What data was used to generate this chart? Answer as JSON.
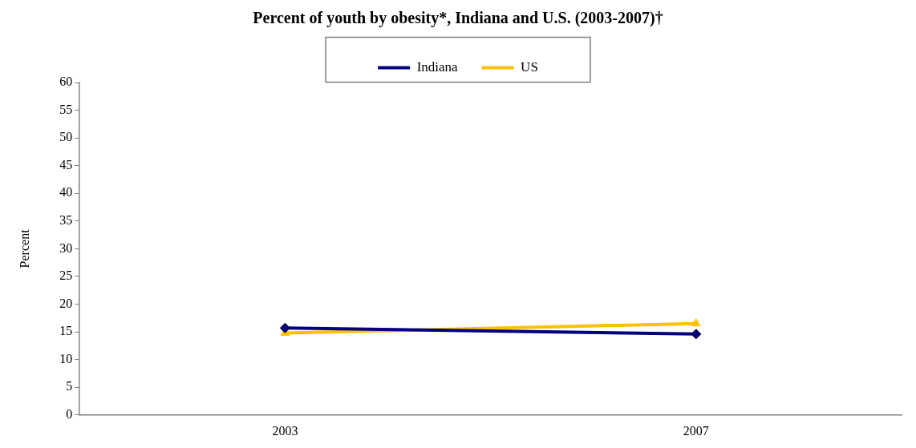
{
  "chart_data": {
    "type": "line",
    "title": "Percent of youth by obesity*, Indiana and U.S. (2003-2007)†",
    "ylabel": "Percent",
    "categories": [
      "2003",
      "2007"
    ],
    "series": [
      {
        "name": "Indiana",
        "color": "#000080",
        "values": [
          15.7,
          14.6
        ],
        "marker": "diamond"
      },
      {
        "name": "US",
        "color": "#ffc000",
        "values": [
          14.8,
          16.5
        ],
        "marker": "triangle"
      }
    ],
    "ylim": [
      0,
      60
    ],
    "yticks": [
      0,
      5,
      10,
      15,
      20,
      25,
      30,
      35,
      40,
      45,
      50,
      55,
      60
    ],
    "grid": false,
    "legend": "top"
  }
}
